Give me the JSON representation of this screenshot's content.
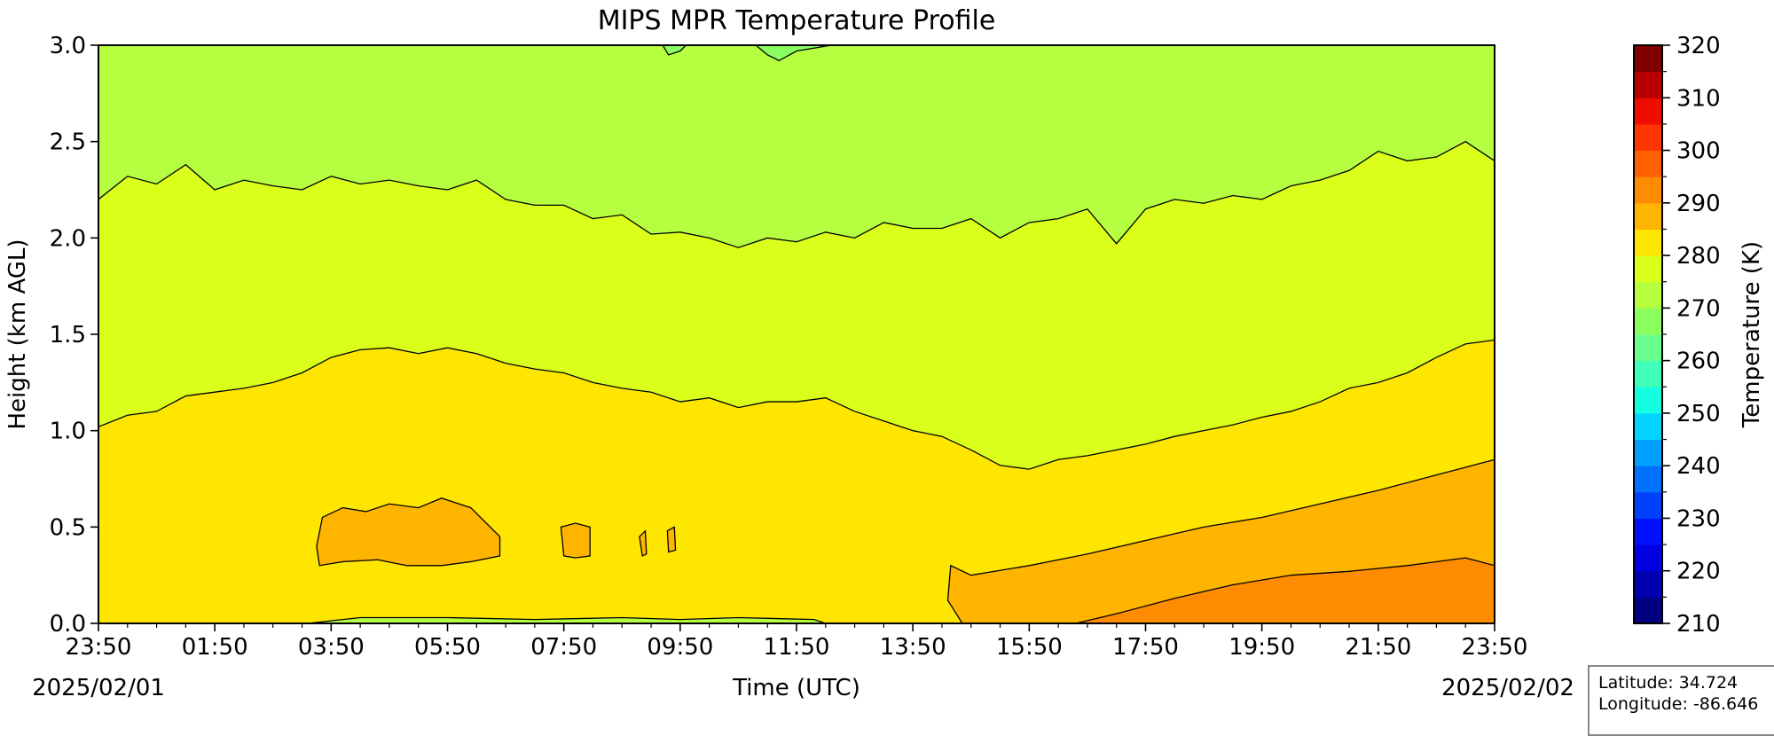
{
  "chart_data": {
    "type": "contourf",
    "title": "MIPS MPR Temperature Profile",
    "xlabel": "Time (UTC)",
    "ylabel": "Height (km AGL)",
    "xlim_hours": [
      0,
      24
    ],
    "ylim": [
      0,
      3.0
    ],
    "x_tick_labels": [
      "23:50",
      "01:50",
      "03:50",
      "05:50",
      "07:50",
      "09:50",
      "11:50",
      "13:50",
      "15:50",
      "17:50",
      "19:50",
      "21:50",
      "23:50"
    ],
    "y_ticks": [
      0.0,
      0.5,
      1.0,
      1.5,
      2.0,
      2.5,
      3.0
    ],
    "y_tick_labels": [
      "0.0",
      "0.5",
      "1.0",
      "1.5",
      "2.0",
      "2.5",
      "3.0"
    ],
    "start_date": "2025/02/01",
    "end_date": "2025/02/02",
    "colorbar": {
      "label": "Temperature (K)",
      "range": [
        210,
        320
      ],
      "level_step": 5,
      "tick_labels": [
        "210",
        "220",
        "230",
        "240",
        "250",
        "260",
        "270",
        "280",
        "290",
        "300",
        "310",
        "320"
      ],
      "colors": [
        "#000080",
        "#0000b0",
        "#0000e0",
        "#0010ff",
        "#0040ff",
        "#0070ff",
        "#00a0ff",
        "#00d4ff",
        "#14ffe2",
        "#40ffb8",
        "#6aff8c",
        "#8cff60",
        "#b6ff40",
        "#d9ff1a",
        "#ffe600",
        "#ffb400",
        "#ff8c00",
        "#ff6000",
        "#ff3500",
        "#f10c00",
        "#b80000",
        "#800000"
      ]
    },
    "background_level_K": [
      270,
      275
    ],
    "regions": [
      {
        "level_K": [
          275,
          280
        ],
        "lower": "ground",
        "upper_boundary": [
          [
            0,
            2.2
          ],
          [
            0.5,
            2.32
          ],
          [
            1,
            2.28
          ],
          [
            1.5,
            2.38
          ],
          [
            2,
            2.25
          ],
          [
            2.5,
            2.3
          ],
          [
            3,
            2.27
          ],
          [
            3.5,
            2.25
          ],
          [
            4,
            2.32
          ],
          [
            4.5,
            2.28
          ],
          [
            5,
            2.3
          ],
          [
            5.5,
            2.27
          ],
          [
            6,
            2.25
          ],
          [
            6.5,
            2.3
          ],
          [
            7,
            2.2
          ],
          [
            7.5,
            2.17
          ],
          [
            8,
            2.17
          ],
          [
            8.5,
            2.1
          ],
          [
            9,
            2.12
          ],
          [
            9.5,
            2.02
          ],
          [
            10,
            2.03
          ],
          [
            10.5,
            2.0
          ],
          [
            11,
            1.95
          ],
          [
            11.5,
            2.0
          ],
          [
            12,
            1.98
          ],
          [
            12.5,
            2.03
          ],
          [
            13,
            2.0
          ],
          [
            13.5,
            2.08
          ],
          [
            14,
            2.05
          ],
          [
            14.5,
            2.05
          ],
          [
            15,
            2.1
          ],
          [
            15.5,
            2.0
          ],
          [
            16,
            2.08
          ],
          [
            16.5,
            2.1
          ],
          [
            17,
            2.15
          ],
          [
            17.5,
            1.97
          ],
          [
            18,
            2.15
          ],
          [
            18.5,
            2.2
          ],
          [
            19,
            2.18
          ],
          [
            19.5,
            2.22
          ],
          [
            20,
            2.2
          ],
          [
            20.5,
            2.27
          ],
          [
            21,
            2.3
          ],
          [
            21.5,
            2.35
          ],
          [
            22,
            2.45
          ],
          [
            22.5,
            2.4
          ],
          [
            23,
            2.42
          ],
          [
            23.5,
            2.5
          ],
          [
            24,
            2.4
          ]
        ]
      },
      {
        "level_K": [
          280,
          285
        ],
        "lower": "ground",
        "upper_boundary": [
          [
            0,
            1.02
          ],
          [
            0.5,
            1.08
          ],
          [
            1,
            1.1
          ],
          [
            1.5,
            1.18
          ],
          [
            2,
            1.2
          ],
          [
            2.5,
            1.22
          ],
          [
            3,
            1.25
          ],
          [
            3.5,
            1.3
          ],
          [
            4,
            1.38
          ],
          [
            4.5,
            1.42
          ],
          [
            5,
            1.43
          ],
          [
            5.5,
            1.4
          ],
          [
            6,
            1.43
          ],
          [
            6.5,
            1.4
          ],
          [
            7,
            1.35
          ],
          [
            7.5,
            1.32
          ],
          [
            8,
            1.3
          ],
          [
            8.5,
            1.25
          ],
          [
            9,
            1.22
          ],
          [
            9.5,
            1.2
          ],
          [
            10,
            1.15
          ],
          [
            10.5,
            1.17
          ],
          [
            11,
            1.12
          ],
          [
            11.5,
            1.15
          ],
          [
            12,
            1.15
          ],
          [
            12.5,
            1.17
          ],
          [
            13,
            1.1
          ],
          [
            13.5,
            1.05
          ],
          [
            14,
            1.0
          ],
          [
            14.5,
            0.97
          ],
          [
            15,
            0.9
          ],
          [
            15.5,
            0.82
          ],
          [
            16,
            0.8
          ],
          [
            16.5,
            0.85
          ],
          [
            17,
            0.87
          ],
          [
            17.5,
            0.9
          ],
          [
            18,
            0.93
          ],
          [
            18.5,
            0.97
          ],
          [
            19,
            1.0
          ],
          [
            19.5,
            1.03
          ],
          [
            20,
            1.07
          ],
          [
            20.5,
            1.1
          ],
          [
            21,
            1.15
          ],
          [
            21.5,
            1.22
          ],
          [
            22,
            1.25
          ],
          [
            22.5,
            1.3
          ],
          [
            23,
            1.38
          ],
          [
            23.5,
            1.45
          ],
          [
            24,
            1.47
          ]
        ]
      },
      {
        "level_K": [
          285,
          290
        ],
        "polygon": [
          [
            14.85,
            0
          ],
          [
            14.6,
            0.12
          ],
          [
            14.65,
            0.3
          ],
          [
            15,
            0.25
          ],
          [
            16,
            0.3
          ],
          [
            17,
            0.36
          ],
          [
            18,
            0.43
          ],
          [
            19,
            0.5
          ],
          [
            20,
            0.55
          ],
          [
            21,
            0.62
          ],
          [
            22,
            0.69
          ],
          [
            23,
            0.77
          ],
          [
            24,
            0.85
          ],
          [
            24,
            0
          ]
        ]
      },
      {
        "level_K": [
          290,
          295
        ],
        "polygon": [
          [
            16.8,
            0
          ],
          [
            17.5,
            0.05
          ],
          [
            18.5,
            0.13
          ],
          [
            19.5,
            0.2
          ],
          [
            20.5,
            0.25
          ],
          [
            21.5,
            0.27
          ],
          [
            22.5,
            0.3
          ],
          [
            23.5,
            0.34
          ],
          [
            24,
            0.3
          ],
          [
            24,
            0
          ]
        ]
      },
      {
        "level_K": [
          285,
          290
        ],
        "polygon": [
          [
            3.75,
            0.4
          ],
          [
            3.85,
            0.55
          ],
          [
            4.2,
            0.6
          ],
          [
            4.6,
            0.58
          ],
          [
            5,
            0.62
          ],
          [
            5.5,
            0.6
          ],
          [
            5.9,
            0.65
          ],
          [
            6.4,
            0.6
          ],
          [
            6.9,
            0.45
          ],
          [
            6.9,
            0.35
          ],
          [
            6.4,
            0.32
          ],
          [
            5.9,
            0.3
          ],
          [
            5.3,
            0.3
          ],
          [
            4.8,
            0.33
          ],
          [
            4.2,
            0.32
          ],
          [
            3.8,
            0.3
          ]
        ]
      },
      {
        "level_K": [
          285,
          290
        ],
        "polygon": [
          [
            8.0,
            0.35
          ],
          [
            7.95,
            0.5
          ],
          [
            8.2,
            0.52
          ],
          [
            8.45,
            0.5
          ],
          [
            8.45,
            0.35
          ],
          [
            8.2,
            0.34
          ]
        ]
      },
      {
        "level_K": [
          285,
          290
        ],
        "polygon": [
          [
            9.35,
            0.35
          ],
          [
            9.3,
            0.45
          ],
          [
            9.4,
            0.48
          ],
          [
            9.42,
            0.36
          ]
        ]
      },
      {
        "level_K": [
          285,
          290
        ],
        "polygon": [
          [
            9.8,
            0.37
          ],
          [
            9.78,
            0.48
          ],
          [
            9.9,
            0.5
          ],
          [
            9.92,
            0.38
          ]
        ]
      },
      {
        "level_K": [
          270,
          275
        ],
        "polygon": [
          [
            3.6,
            0
          ],
          [
            4.5,
            0.03
          ],
          [
            6,
            0.03
          ],
          [
            7.5,
            0.02
          ],
          [
            9,
            0.03
          ],
          [
            10,
            0.02
          ],
          [
            11,
            0.03
          ],
          [
            12.3,
            0.02
          ],
          [
            12.5,
            0
          ]
        ]
      },
      {
        "level_K": [
          265,
          270
        ],
        "polygon": [
          [
            9.7,
            3.0
          ],
          [
            9.8,
            2.95
          ],
          [
            10.0,
            2.97
          ],
          [
            10.1,
            3.0
          ]
        ]
      },
      {
        "level_K": [
          265,
          270
        ],
        "polygon": [
          [
            11.3,
            3.0
          ],
          [
            11.5,
            2.95
          ],
          [
            11.7,
            2.92
          ],
          [
            12.0,
            2.97
          ],
          [
            12.6,
            3.0
          ]
        ]
      }
    ]
  },
  "station": {
    "latitude": "Latitude: 34.724",
    "longitude": "Longitude: -86.646"
  }
}
